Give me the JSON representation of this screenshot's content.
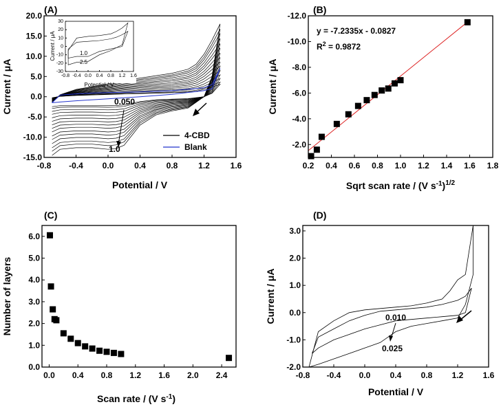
{
  "chart_data": [
    {
      "panel": "(A)",
      "type": "line",
      "xlabel": "Potential / V",
      "ylabel": "Current / μA",
      "xlim": [
        -0.8,
        1.6
      ],
      "ylim": [
        -15,
        20
      ],
      "xticks": [
        "-0.8",
        "-0.4",
        "0.0",
        "0.4",
        "0.8",
        "1.2",
        "1.6"
      ],
      "yticks": [
        "-15.0",
        "-10.0",
        "-5.0",
        "0.0",
        "5.0",
        "10.0",
        "15.0",
        "20.0"
      ],
      "legend": [
        {
          "label": "4-CBD",
          "color": "#000000"
        },
        {
          "label": "Blank",
          "color": "#2233cc"
        }
      ],
      "legend_position": "bottom-right",
      "annotations": [
        "0.050",
        "1.0"
      ],
      "scale_factors": [
        0.17,
        0.2,
        0.25,
        0.3,
        0.36,
        0.42,
        0.48,
        0.54,
        0.6,
        0.67,
        0.73,
        0.8,
        0.87,
        0.93,
        1.0
      ],
      "outermost_scan": {
        "forward_x": [
          -0.7,
          -0.6,
          -0.4,
          -0.2,
          0.0,
          0.2,
          0.4,
          0.6,
          0.8,
          1.0,
          1.1,
          1.2,
          1.3,
          1.4
        ],
        "forward_y": [
          -1.5,
          0.5,
          1.8,
          2.5,
          3.2,
          4.0,
          4.6,
          5.2,
          5.8,
          6.8,
          8.0,
          10.5,
          14.0,
          18.0
        ],
        "reverse_x": [
          1.4,
          1.3,
          1.2,
          1.0,
          0.8,
          0.6,
          0.4,
          0.3,
          0.2,
          0.1,
          0.0,
          -0.2,
          -0.4,
          -0.6,
          -0.7
        ],
        "reverse_y": [
          18.0,
          5.0,
          0.0,
          -2.8,
          -3.5,
          -4.5,
          -7.0,
          -9.5,
          -12.0,
          -12.8,
          -13.0,
          -12.6,
          -12.6,
          -13.0,
          -14.5
        ]
      },
      "blank": {
        "x": [
          -0.7,
          -0.6,
          -0.4,
          -0.2,
          0.0,
          0.4,
          0.8,
          1.2,
          1.3,
          1.4,
          1.3,
          1.2,
          0.8,
          0.4,
          0.0,
          -0.4,
          -0.6,
          -0.7
        ],
        "y": [
          -1.5,
          0.4,
          0.7,
          0.9,
          1.0,
          1.2,
          1.5,
          2.2,
          3.0,
          7.0,
          2.0,
          1.5,
          0.6,
          0.0,
          -0.5,
          -1.0,
          -1.3,
          -1.5
        ]
      },
      "inset": {
        "xlabel": "Potential / V",
        "ylabel": "Current / μA",
        "xlim": [
          -0.8,
          1.6
        ],
        "ylim": [
          -30,
          30
        ],
        "xticks": [
          "-0.8",
          "-0.4",
          "0.0",
          "0.4",
          "0.8",
          "1.2",
          "1.6"
        ],
        "yticks": [
          "-30",
          "-20",
          "-10",
          "0",
          "10",
          "20",
          "30"
        ],
        "annotations": [
          "1.0",
          "2.5"
        ],
        "curves": [
          {
            "name": "1.0",
            "x": [
              -0.7,
              -0.4,
              0.0,
              0.4,
              0.8,
              1.0,
              1.2,
              1.4,
              1.2,
              0.8,
              0.4,
              0.0,
              -0.4,
              -0.7,
              -0.7
            ],
            "y": [
              -3,
              5,
              6,
              7,
              9,
              11,
              14,
              18,
              0,
              -3,
              -6,
              -12,
              -12,
              -14,
              -3
            ]
          },
          {
            "name": "2.5",
            "x": [
              -0.7,
              -0.4,
              0.0,
              0.4,
              0.8,
              1.0,
              1.2,
              1.4,
              1.2,
              0.8,
              0.4,
              0.0,
              -0.4,
              -0.7,
              -0.7
            ],
            "y": [
              -5,
              10,
              12,
              13,
              15,
              18,
              22,
              28,
              2,
              -5,
              -10,
              -18,
              -19,
              -22,
              -5
            ]
          }
        ]
      }
    },
    {
      "panel": "(B)",
      "type": "scatter",
      "xlabel": "Sqrt scan rate / (V s",
      "xlabel_sup1": "-1",
      "xlabel_close": ")",
      "xlabel_sup2": "1/2",
      "ylabel": "Current / μA",
      "xlim": [
        0.2,
        1.8
      ],
      "ylim": [
        -1.0,
        -12.0
      ],
      "xticks": [
        "0.2",
        "0.4",
        "0.6",
        "0.8",
        "1.0",
        "1.2",
        "1.4",
        "1.6",
        "1.8"
      ],
      "yticks": [
        "-2.0",
        "-4.0",
        "-6.0",
        "-8.0",
        "-10.0",
        "-12.0"
      ],
      "x": [
        0.224,
        0.274,
        0.316,
        0.447,
        0.548,
        0.632,
        0.707,
        0.775,
        0.837,
        0.894,
        0.949,
        1.0,
        1.581
      ],
      "y": [
        -1.1,
        -1.6,
        -2.6,
        -3.6,
        -4.35,
        -5.0,
        -5.45,
        -5.85,
        -6.2,
        -6.35,
        -6.75,
        -7.0,
        -11.5
      ],
      "fit": {
        "slope": -7.2335,
        "intercept": -0.0827,
        "color": "#dd2222",
        "x_range": [
          0.2,
          1.6
        ]
      },
      "equation": "y = -7.2335x - 0.0827",
      "r2_label": "R",
      "r2_sup": "2",
      "r2_value": " = 0.9872"
    },
    {
      "panel": "(C)",
      "type": "scatter",
      "xlabel": "Scan rate / (V s",
      "xlabel_sup": "-1",
      "xlabel_close": ")",
      "ylabel": "Number of layers",
      "xlim": [
        -0.1,
        2.6
      ],
      "ylim": [
        0.0,
        6.5
      ],
      "xticks": [
        "0.0",
        "0.4",
        "0.8",
        "1.2",
        "1.6",
        "2.0",
        "2.4"
      ],
      "yticks": [
        "0.0",
        "1.0",
        "2.0",
        "3.0",
        "4.0",
        "5.0",
        "6.0"
      ],
      "x": [
        0.01,
        0.025,
        0.05,
        0.075,
        0.1,
        0.2,
        0.3,
        0.4,
        0.5,
        0.6,
        0.7,
        0.8,
        0.9,
        1.0,
        2.5
      ],
      "y": [
        6.05,
        3.7,
        2.65,
        2.2,
        2.15,
        1.55,
        1.3,
        1.1,
        0.95,
        0.85,
        0.75,
        0.7,
        0.65,
        0.6,
        0.42
      ]
    },
    {
      "panel": "(D)",
      "type": "line",
      "xlabel": "Potential / V",
      "ylabel": "Current / μA",
      "xlim": [
        -0.8,
        1.6
      ],
      "ylim": [
        -2.0,
        3.2
      ],
      "xticks": [
        "-0.8",
        "-0.4",
        "0.0",
        "0.4",
        "0.8",
        "1.2",
        "1.6"
      ],
      "yticks": [
        "-2.0",
        "-1.0",
        "0.0",
        "1.0",
        "2.0",
        "3.0"
      ],
      "annotations": [
        "0.010",
        "0.025"
      ],
      "curves": [
        {
          "name": "0.010",
          "x": [
            -0.68,
            -0.6,
            -0.4,
            -0.2,
            0.0,
            0.2,
            0.4,
            0.6,
            0.8,
            1.0,
            1.2,
            1.3,
            1.38,
            1.38,
            1.3,
            1.2,
            1.0,
            0.8,
            0.4,
            0.2,
            0.0,
            -0.2,
            -0.4,
            -0.6,
            -0.68
          ],
          "y": [
            -1.5,
            -0.9,
            -0.6,
            -0.3,
            -0.1,
            0.05,
            0.1,
            0.15,
            0.2,
            0.3,
            0.45,
            0.6,
            0.9,
            0.9,
            0.0,
            -0.1,
            -0.15,
            -0.2,
            -0.3,
            -0.45,
            -0.6,
            -0.8,
            -1.0,
            -1.3,
            -1.5
          ]
        },
        {
          "name": "0.025",
          "x": [
            -0.72,
            -0.6,
            -0.4,
            -0.2,
            0.0,
            0.2,
            0.4,
            0.6,
            0.8,
            1.0,
            1.1,
            1.2,
            1.3,
            1.4,
            1.4,
            1.3,
            1.2,
            1.0,
            0.8,
            0.6,
            0.4,
            0.3,
            0.2,
            0.1,
            0.0,
            -0.2,
            -0.4,
            -0.6,
            -0.72
          ],
          "y": [
            -2.0,
            -0.7,
            -0.3,
            0.0,
            0.1,
            0.15,
            0.2,
            0.25,
            0.35,
            0.5,
            0.8,
            1.2,
            1.4,
            3.2,
            1.4,
            0.3,
            -0.2,
            -0.3,
            -0.4,
            -0.5,
            -0.7,
            -0.9,
            -1.1,
            -1.2,
            -1.3,
            -1.5,
            -1.7,
            -1.9,
            -2.0
          ]
        }
      ]
    }
  ]
}
